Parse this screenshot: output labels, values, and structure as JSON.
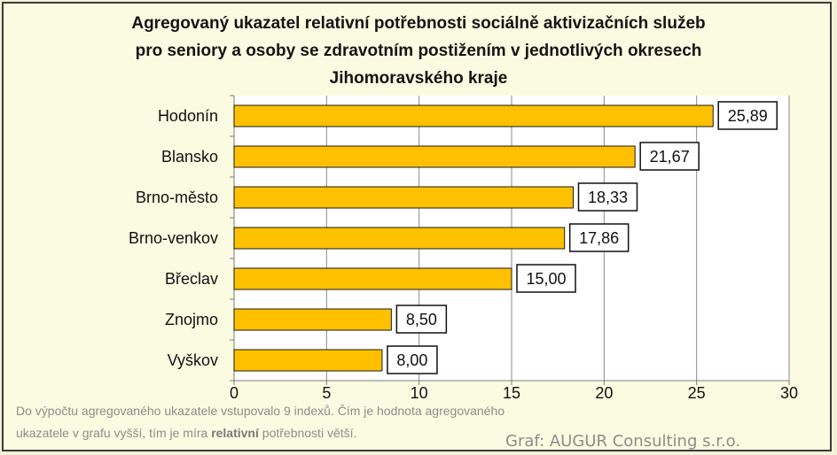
{
  "title_lines": [
    "Agregovaný ukazatel relativní potřebnosti  sociálně  aktivizačních služeb",
    "pro seniory a osoby se zdravotním postižením v jednotlivých okresech",
    "Jihomoravského  kraje"
  ],
  "chart_data": {
    "type": "bar",
    "orientation": "horizontal",
    "title": "Agregovaný ukazatel relativní potřebnosti  sociálně  aktivizačních služeb pro seniory a osoby se zdravotním postižením v jednotlivých okresech Jihomoravského  kraje",
    "categories": [
      "Hodonín",
      "Blansko",
      "Brno-město",
      "Brno-venkov",
      "Břeclav",
      "Znojmo",
      "Vyškov"
    ],
    "values": [
      25.89,
      21.67,
      18.33,
      17.86,
      15.0,
      8.5,
      8.0
    ],
    "data_labels": [
      "25,89",
      "21,67",
      "18,33",
      "17,86",
      "15,00",
      "8,50",
      "8,00"
    ],
    "xlim": [
      0,
      30
    ],
    "x_ticks": [
      0,
      5,
      10,
      15,
      20,
      25,
      30
    ],
    "x_tick_labels": [
      "0",
      "5",
      "10",
      "15",
      "20",
      "25",
      "30"
    ],
    "grid": "vertical",
    "bar_color": "#ffc000",
    "bar_edge_color": "#1a1a1a"
  },
  "note": {
    "line1": "Do výpočtu agregovaného ukazatele vstupovalo 9 indexů. Čím je hodnota agregovaného",
    "line2_pre": "ukazatele v grafu vyšší, tím je míra ",
    "line2_bold": "relativní",
    "line2_post": " potřebnosti větší."
  },
  "credit": "Graf: AUGUR Consulting s.r.o."
}
